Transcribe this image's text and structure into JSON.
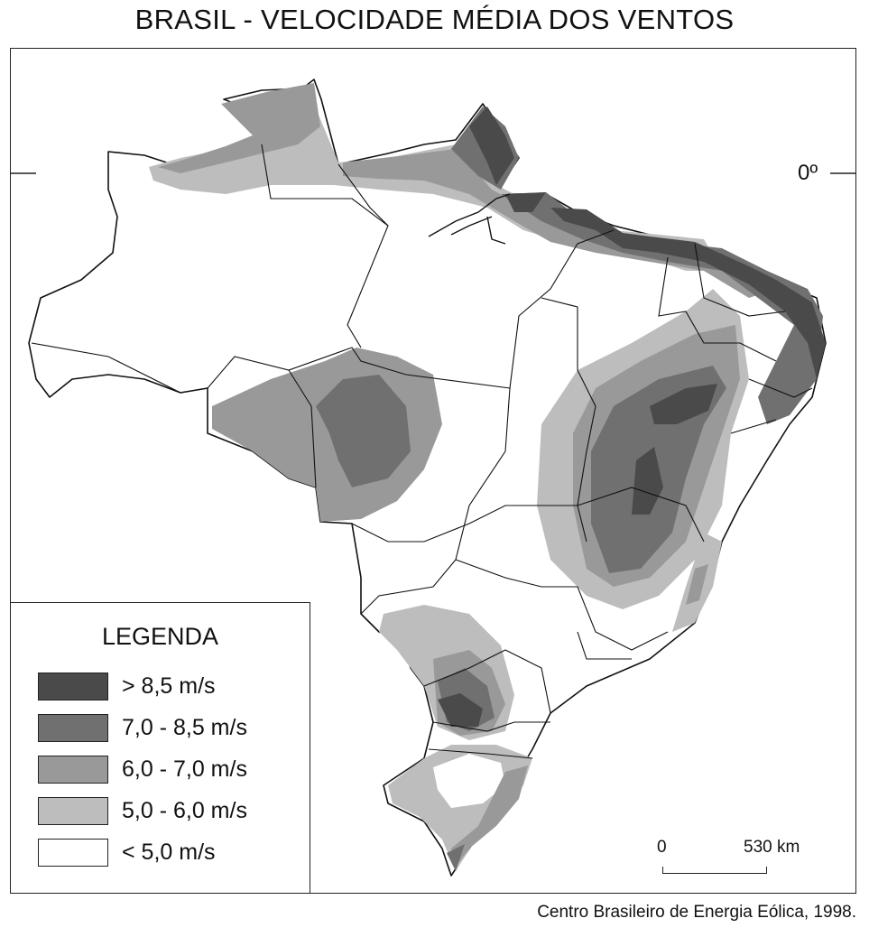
{
  "title": "BRASIL - VELOCIDADE MÉDIA DOS VENTOS",
  "equator_label": "0º",
  "legend": {
    "title": "LEGENDA",
    "items": [
      {
        "label": "> 8,5 m/s",
        "color": "#4a4a4a"
      },
      {
        "label": "7,0 - 8,5 m/s",
        "color": "#707070"
      },
      {
        "label": "6,0 - 7,0 m/s",
        "color": "#999999"
      },
      {
        "label": "5,0 - 6,0 m/s",
        "color": "#bdbdbd"
      },
      {
        "label": "< 5,0 m/s",
        "color": "#ffffff"
      }
    ]
  },
  "scale": {
    "start": "0",
    "end": "530 km"
  },
  "source": "Centro Brasileiro de Energia Eólica, 1998."
}
